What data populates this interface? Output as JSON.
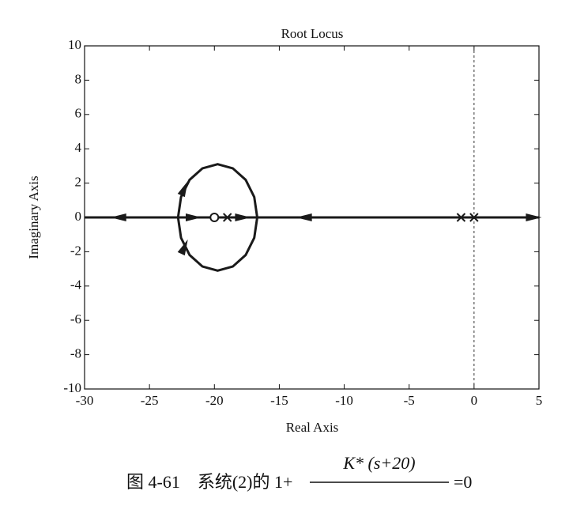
{
  "chart_data": {
    "type": "line",
    "title": "Root Locus",
    "xlabel": "Real Axis",
    "ylabel": "Imaginary Axis",
    "xlim": [
      -30,
      5
    ],
    "ylim": [
      -10,
      10
    ],
    "xticks": [
      -30,
      -25,
      -20,
      -15,
      -10,
      -5,
      0,
      5
    ],
    "yticks": [
      -10,
      -8,
      -6,
      -4,
      -2,
      0,
      2,
      4,
      6,
      8,
      10
    ],
    "grid": false,
    "vline": 0,
    "series": [
      {
        "color": "#1a1a1a",
        "line": true,
        "marker": "none",
        "x": [
          -30,
          5
        ],
        "y": [
          0,
          0
        ]
      },
      {
        "color": "#1a1a1a",
        "line": true,
        "marker": "none",
        "x": [
          -16.7,
          -16.93,
          -17.59,
          -18.58,
          -19.75,
          -20.92,
          -21.91,
          -22.57,
          -22.8,
          -22.57,
          -21.91,
          -20.92,
          -19.75,
          -18.58,
          -17.59,
          -16.93,
          -16.7
        ],
        "y": [
          0,
          1.19,
          2.19,
          2.86,
          3.1,
          2.86,
          2.19,
          1.19,
          0,
          -1.19,
          -2.19,
          -2.86,
          -3.1,
          -2.86,
          -2.19,
          -1.19,
          0
        ]
      },
      {
        "color": "#1a1a1a",
        "line": false,
        "marker": "x",
        "x": [
          0,
          -1,
          -19
        ],
        "y": [
          0,
          0,
          0
        ]
      },
      {
        "color": "#1a1a1a",
        "line": false,
        "marker": "o",
        "x": [
          -20
        ],
        "y": [
          0
        ]
      }
    ],
    "arrows": {
      "color": "#1a1a1a",
      "x": [
        -27.4,
        -21.6,
        -17.8,
        -13.1,
        4.6,
        -22.3,
        -22.3
      ],
      "y": [
        0,
        0,
        0,
        0,
        0,
        1.7,
        -1.7
      ],
      "angle": [
        180,
        0,
        0,
        180,
        0,
        65,
        65
      ]
    },
    "caption": {
      "prefix": "图 4-61　系统(2)的 1+",
      "numerator": "K* (s+20)",
      "suffix": "=0"
    }
  }
}
